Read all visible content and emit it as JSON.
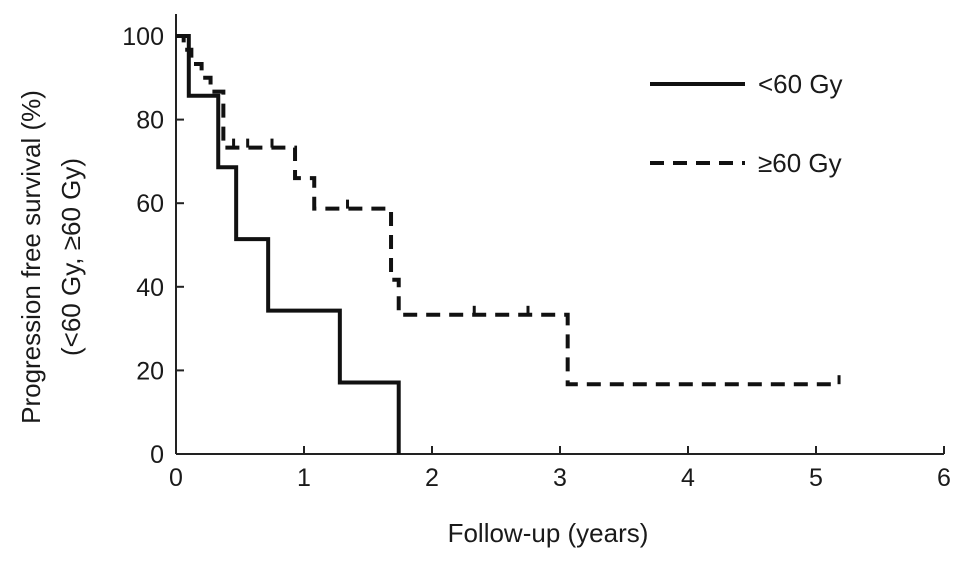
{
  "chart_data": {
    "type": "line",
    "title": "",
    "xlabel": "Follow-up (years)",
    "ylabel_lines": [
      "Progression free survival (%)",
      "(<60 Gy, ≥60 Gy)"
    ],
    "xlim": [
      0,
      6
    ],
    "ylim": [
      0,
      100
    ],
    "x_ticks": [
      0,
      1,
      2,
      3,
      4,
      5,
      6
    ],
    "y_ticks": [
      0,
      20,
      40,
      60,
      80,
      100
    ],
    "grid": false,
    "legend_position": "top-right",
    "step": true,
    "series": [
      {
        "name": "<60 Gy",
        "style": "solid",
        "color": "#111111",
        "x": [
          0,
          0.1,
          0.33,
          0.47,
          0.72,
          1.28,
          1.74,
          1.74
        ],
        "y": [
          100,
          85.7,
          68.6,
          51.4,
          34.3,
          17.1,
          0,
          0
        ],
        "censored": []
      },
      {
        "name": "≥60 Gy",
        "style": "dashed",
        "color": "#111111",
        "x": [
          0,
          0.06,
          0.12,
          0.2,
          0.27,
          0.37,
          0.93,
          1.08,
          1.68,
          1.74,
          3.06,
          5.18
        ],
        "y": [
          100,
          96.7,
          93.3,
          90.0,
          86.7,
          73.3,
          66.0,
          58.7,
          41.7,
          33.3,
          16.7,
          16.7
        ],
        "censored": [
          {
            "x": 0.45,
            "y": 73.3
          },
          {
            "x": 0.56,
            "y": 73.3
          },
          {
            "x": 0.75,
            "y": 73.3
          },
          {
            "x": 1.34,
            "y": 58.7
          },
          {
            "x": 2.33,
            "y": 33.3
          },
          {
            "x": 2.75,
            "y": 33.3
          },
          {
            "x": 5.18,
            "y": 16.7
          }
        ]
      }
    ]
  }
}
